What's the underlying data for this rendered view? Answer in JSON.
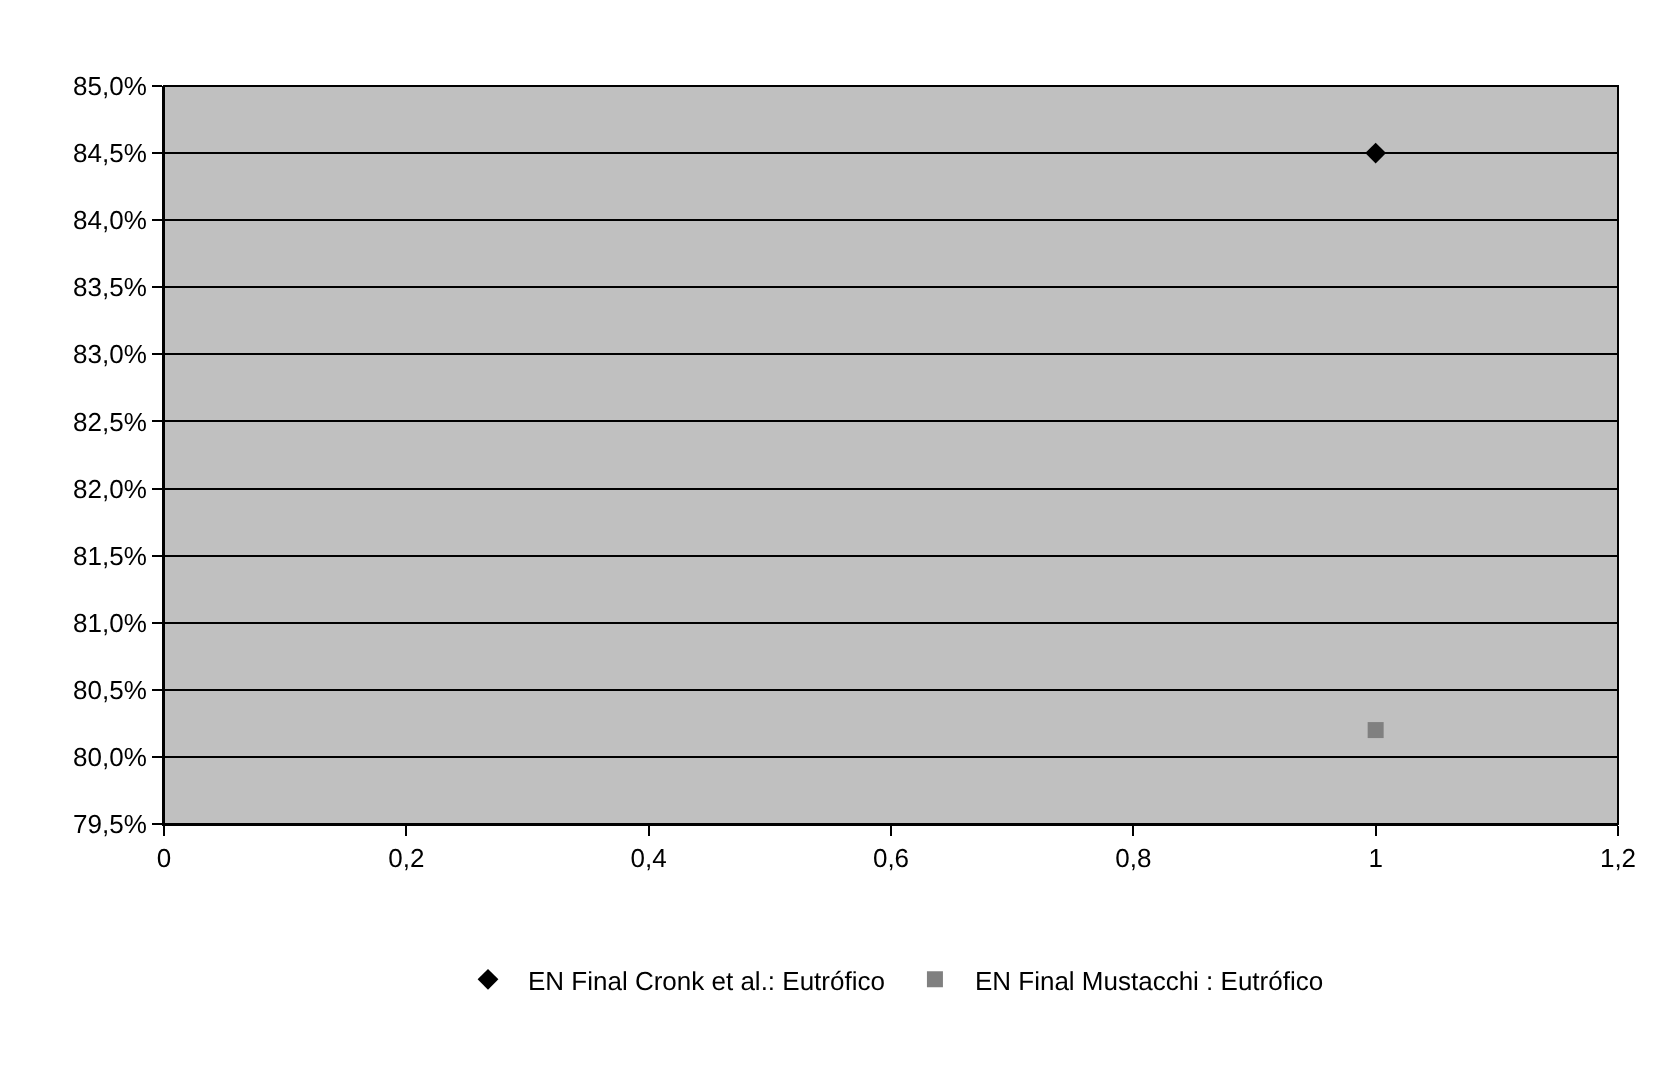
{
  "chart_data": {
    "type": "scatter",
    "series": [
      {
        "name": "EN Final Cronk et al.: Eutrófico",
        "color": "#000000",
        "marker": "diamond",
        "x": [
          1
        ],
        "values": [
          84.5
        ]
      },
      {
        "name": "EN Final Mustacchi : Eutrófico",
        "color": "#808080",
        "marker": "square",
        "x": [
          1
        ],
        "values": [
          80.2
        ]
      }
    ],
    "xlim": [
      0,
      1.2
    ],
    "xticks": [
      0,
      {
        "value": 0.2,
        "label": "0,2"
      },
      {
        "value": 0.4,
        "label": "0,4"
      },
      {
        "value": 0.6,
        "label": "0,6"
      },
      {
        "value": 0.8,
        "label": "0,8"
      },
      1,
      {
        "value": 1.2,
        "label": "1,2"
      }
    ],
    "ylim": [
      79.5,
      85.0
    ],
    "yticks": [
      {
        "value": 79.5,
        "label": "79,5%"
      },
      {
        "value": 80.0,
        "label": "80,0%"
      },
      {
        "value": 80.5,
        "label": "80,5%"
      },
      {
        "value": 81.0,
        "label": "81,0%"
      },
      {
        "value": 81.5,
        "label": "81,5%"
      },
      {
        "value": 82.0,
        "label": "82,0%"
      },
      {
        "value": 82.5,
        "label": "82,5%"
      },
      {
        "value": 83.0,
        "label": "83,0%"
      },
      {
        "value": 83.5,
        "label": "83,5%"
      },
      {
        "value": 84.0,
        "label": "84,0%"
      },
      {
        "value": 84.5,
        "label": "84,5%"
      },
      {
        "value": 85.0,
        "label": "85,0%"
      }
    ],
    "grid": "y",
    "legend": "bottom"
  }
}
